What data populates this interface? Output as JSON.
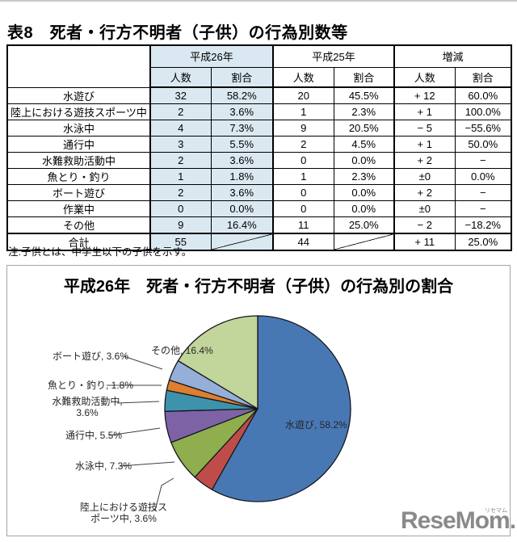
{
  "title": "表8　死者・行方不明者（子供）の行為別数等",
  "note": "注:子供とは、中学生以下の子供を示す。",
  "logo": {
    "text": "ReseMom.",
    "ruby": "リセマム",
    "color": "#8a8a8a"
  },
  "table": {
    "groups": [
      {
        "label": "平成26年",
        "highlight": true
      },
      {
        "label": "平成25年",
        "highlight": false
      },
      {
        "label": "増減",
        "highlight": false
      }
    ],
    "sub_headers": [
      "人数",
      "割合",
      "人数",
      "割合",
      "人数",
      "割合"
    ],
    "highlight_color": "#DAE9F1",
    "rows": [
      {
        "label": "水遊び",
        "cells": [
          "32",
          "58.2%",
          "20",
          "45.5%",
          "+ 12",
          "60.0%"
        ]
      },
      {
        "label": "陸上における遊技スポーツ中",
        "cells": [
          "2",
          "3.6%",
          "1",
          "2.3%",
          "+ 1",
          "100.0%"
        ]
      },
      {
        "label": "水泳中",
        "cells": [
          "4",
          "7.3%",
          "9",
          "20.5%",
          "− 5",
          "−55.6%"
        ]
      },
      {
        "label": "通行中",
        "cells": [
          "3",
          "5.5%",
          "2",
          "4.5%",
          "+ 1",
          "50.0%"
        ]
      },
      {
        "label": "水難救助活動中",
        "cells": [
          "2",
          "3.6%",
          "0",
          "0.0%",
          "+ 2",
          "−"
        ]
      },
      {
        "label": "魚とり・釣り",
        "cells": [
          "1",
          "1.8%",
          "1",
          "2.3%",
          "±0",
          "0.0%"
        ]
      },
      {
        "label": "ボート遊び",
        "cells": [
          "2",
          "3.6%",
          "0",
          "0.0%",
          "+ 2",
          "−"
        ]
      },
      {
        "label": "作業中",
        "cells": [
          "0",
          "0.0%",
          "0",
          "0.0%",
          "±0",
          "−"
        ]
      },
      {
        "label": "その他",
        "cells": [
          "9",
          "16.4%",
          "11",
          "25.0%",
          "− 2",
          "−18.2%"
        ]
      },
      {
        "label": "合計",
        "cells": [
          "55",
          "",
          "44",
          "",
          "+ 11",
          "25.0%"
        ],
        "total": true
      }
    ]
  },
  "chart_data": {
    "type": "pie",
    "title": "平成26年　死者・行方不明者（子供）の行為別の割合",
    "total": 55,
    "start_angle_deg": 0,
    "direction": "clockwise",
    "legend_position": "none",
    "slices": [
      {
        "name": "水遊び",
        "value": 32,
        "pct": "58.2%",
        "color": "#4878B4",
        "label": "水遊び, 58.2%"
      },
      {
        "name": "陸上における遊技スポーツ中",
        "value": 2,
        "pct": "3.6%",
        "color": "#BE4D49",
        "label": "陸上における遊技ス\nポーツ中, 3.6%"
      },
      {
        "name": "水泳中",
        "value": 4,
        "pct": "7.3%",
        "color": "#8FAE4E",
        "label": "水泳中, 7.3%"
      },
      {
        "name": "通行中",
        "value": 3,
        "pct": "5.5%",
        "color": "#7D63A5",
        "label": "通行中, 5.5%"
      },
      {
        "name": "水難救助活動中",
        "value": 2,
        "pct": "3.6%",
        "color": "#3D93AB",
        "label": "水難救助活動中,\n3.6%"
      },
      {
        "name": "魚とり・釣り",
        "value": 1,
        "pct": "1.8%",
        "color": "#E07E30",
        "label": "魚とり・釣り, 1.8%"
      },
      {
        "name": "ボート遊び",
        "value": 2,
        "pct": "3.6%",
        "color": "#95AFD8",
        "label": "ボート遊び, 3.6%"
      },
      {
        "name": "その他",
        "value": 9,
        "pct": "16.4%",
        "color": "#C2D59A",
        "label": "その他, 16.4%"
      }
    ]
  }
}
